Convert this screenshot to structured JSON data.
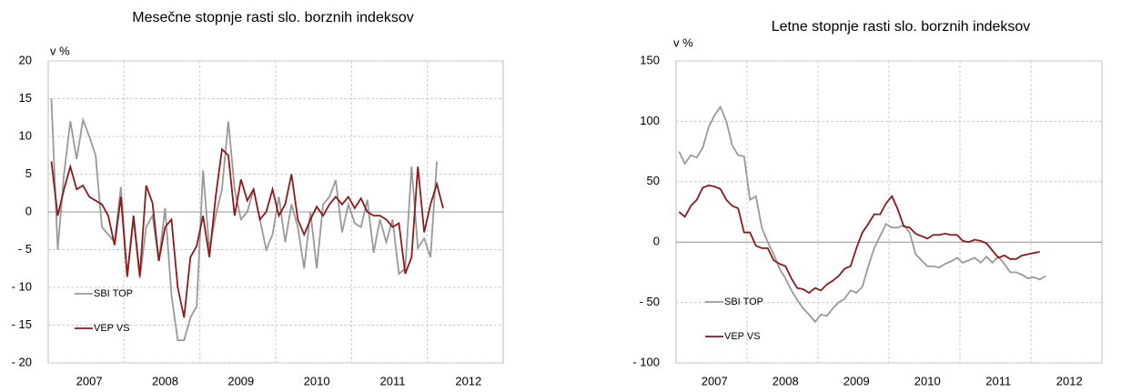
{
  "chart_data": [
    {
      "type": "line",
      "title": "Mesečne stopnje rasti slo. borznih indeksov",
      "y_label": "v %",
      "categories": [
        null,
        null,
        null,
        null,
        null,
        null,
        "2007",
        null,
        null,
        null,
        null,
        null,
        null,
        null,
        null,
        null,
        null,
        null,
        "2008",
        null,
        null,
        null,
        null,
        null,
        null,
        null,
        null,
        null,
        null,
        null,
        "2009",
        null,
        null,
        null,
        null,
        null,
        null,
        null,
        null,
        null,
        null,
        null,
        "2010",
        null,
        null,
        null,
        null,
        null,
        null,
        null,
        null,
        null,
        null,
        null,
        "2011",
        null,
        null,
        null,
        null,
        null,
        null,
        null,
        null,
        null,
        null,
        null,
        "2012",
        null,
        null,
        null,
        null,
        null
      ],
      "series": [
        {
          "name": "SBI TOP",
          "color": "#999999",
          "values": [
            15,
            -5,
            5,
            12,
            7,
            12.2,
            10,
            7.5,
            -2,
            -3,
            -4,
            3.3,
            -8.7,
            -1,
            -8.8,
            -2,
            -0.5,
            -6.5,
            0.5,
            -11,
            -17,
            -17,
            -14,
            -12.5,
            5.5,
            -5,
            -0.5,
            3,
            12,
            3,
            -1,
            0,
            3,
            -1,
            -5,
            -3,
            2,
            -4,
            1,
            -2,
            -7.5,
            0,
            -7.5,
            1,
            2,
            4.2,
            -2.7,
            1,
            -1.5,
            -2,
            1.6,
            -5.4,
            -1,
            -4,
            -1,
            -8.2,
            -7.5,
            6,
            -4.8,
            -3.5,
            -6,
            6.7,
            null,
            null,
            null,
            null,
            null,
            null,
            null,
            null,
            null,
            null
          ]
        },
        {
          "name": "VEP VS",
          "color": "#8b1a1a",
          "values": [
            6.7,
            -0.5,
            3,
            6,
            3,
            3.5,
            2,
            1.5,
            1,
            -0.5,
            -4.4,
            2,
            -8.5,
            -0.5,
            -8.5,
            3.5,
            1.2,
            -6.5,
            -2,
            -1,
            -10,
            -14,
            -6,
            -4.5,
            -0.5,
            -6,
            2,
            8.3,
            7.5,
            -0.5,
            4.3,
            1.5,
            3,
            -1,
            0,
            3,
            -0.5,
            1,
            5,
            -1,
            -3,
            -1,
            0.7,
            -0.5,
            1,
            2,
            1,
            2,
            0.5,
            1.8,
            0,
            -0.5,
            -0.5,
            -1,
            -2,
            -1.5,
            -8.2,
            -6,
            6,
            -2.7,
            1,
            3.7,
            0.5,
            null,
            null,
            null,
            null,
            null,
            null,
            null,
            null,
            null
          ]
        }
      ],
      "ylim": [
        -20,
        20
      ],
      "yticks": [
        {
          "value": -20,
          "label": "- 20"
        },
        {
          "value": -15,
          "label": "- 15"
        },
        {
          "value": -10,
          "label": "- 10"
        },
        {
          "value": -5,
          "label": "- 5"
        },
        0,
        5,
        10,
        15,
        20
      ],
      "grid": true,
      "legend": "lower left"
    },
    {
      "type": "line",
      "title": "Letne stopnje rasti slo. borznih indeksov",
      "y_label": "v %",
      "categories": [
        null,
        null,
        null,
        null,
        null,
        null,
        "2007",
        null,
        null,
        null,
        null,
        null,
        null,
        null,
        null,
        null,
        null,
        null,
        "2008",
        null,
        null,
        null,
        null,
        null,
        null,
        null,
        null,
        null,
        null,
        null,
        "2009",
        null,
        null,
        null,
        null,
        null,
        null,
        null,
        null,
        null,
        null,
        null,
        "2010",
        null,
        null,
        null,
        null,
        null,
        null,
        null,
        null,
        null,
        null,
        null,
        "2011",
        null,
        null,
        null,
        null,
        null,
        null,
        null,
        null,
        null,
        null,
        null,
        "2012",
        null,
        null,
        null,
        null,
        null
      ],
      "series": [
        {
          "name": "SBI TOP",
          "color": "#999999",
          "values": [
            75,
            65,
            72,
            70,
            78,
            95,
            105,
            112,
            100,
            80,
            72,
            71,
            35,
            38,
            12,
            0,
            -10,
            -22,
            -30,
            -40,
            -48,
            -55,
            -60,
            -66,
            -60,
            -61,
            -55,
            -50,
            -47,
            -40,
            -42,
            -37,
            -20,
            -5,
            5,
            15,
            12,
            12,
            14,
            8,
            -10,
            -15,
            -20,
            -20,
            -21,
            -18,
            -16,
            -13,
            -17,
            -15,
            -13,
            -17,
            -12,
            -17,
            -12,
            -18,
            -25,
            -25,
            -27,
            -30,
            -29,
            -31,
            -28,
            null,
            null,
            null,
            null,
            null,
            null,
            null,
            null,
            null
          ]
        },
        {
          "name": "VEP VS",
          "color": "#8b1a1a",
          "values": [
            25,
            21,
            30,
            35,
            45,
            47,
            46,
            44,
            35,
            30,
            28,
            8,
            8,
            -3,
            -5,
            -5,
            -15,
            -18,
            -20,
            -30,
            -38,
            -39,
            -42,
            -38,
            -40,
            -35,
            -32,
            -28,
            -22,
            -20,
            -5,
            8,
            15,
            23,
            23,
            32,
            38,
            27,
            13,
            12,
            7,
            5,
            3,
            6,
            6,
            7,
            6,
            6,
            1,
            0,
            2,
            1,
            -1,
            -7,
            -13,
            -11,
            -14,
            -14,
            -11,
            -10,
            -9,
            -8,
            null,
            null,
            null,
            null,
            null,
            null,
            null,
            null,
            null,
            null
          ]
        }
      ],
      "ylim": [
        -100,
        150
      ],
      "yticks": [
        {
          "value": -100,
          "label": "- 100"
        },
        {
          "value": -50,
          "label": "- 50"
        },
        0,
        50,
        100,
        150
      ],
      "grid": true,
      "legend": "lower left"
    }
  ]
}
